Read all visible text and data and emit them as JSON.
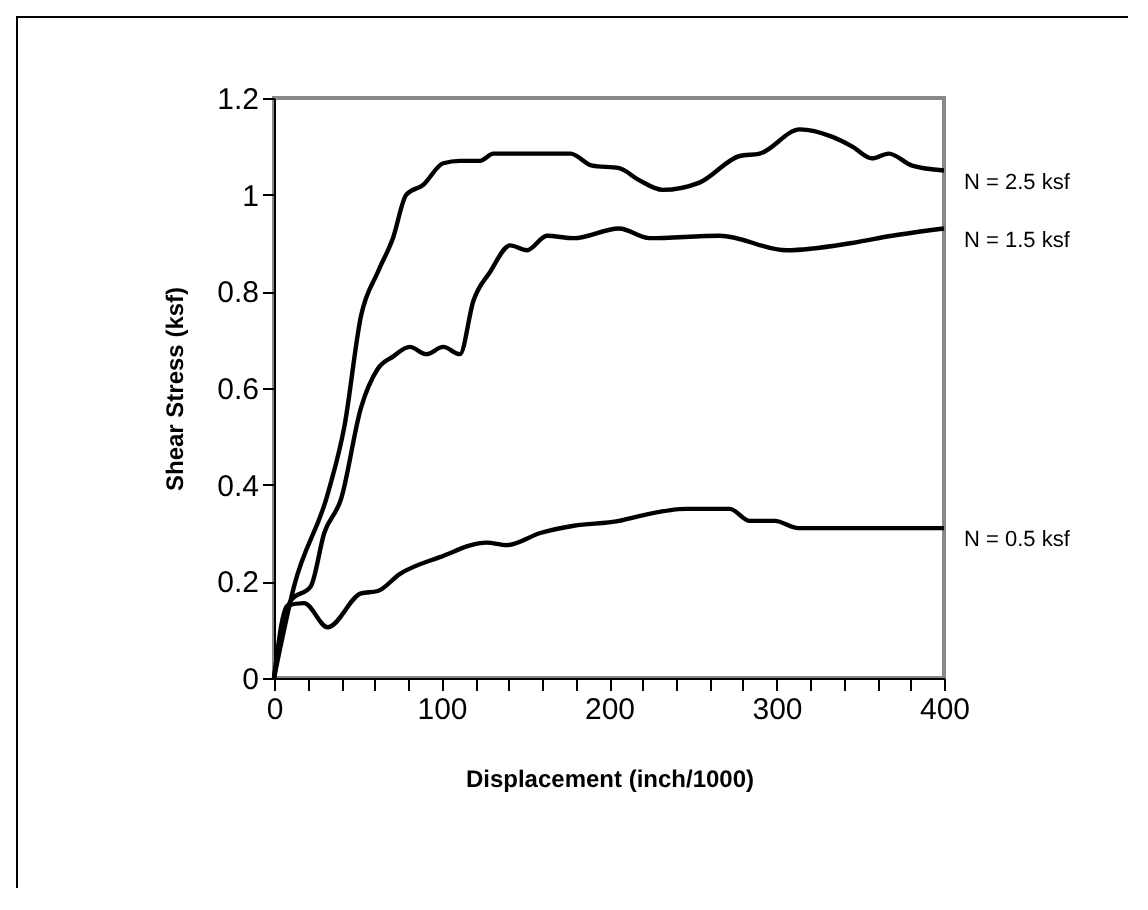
{
  "chart_data": {
    "type": "line",
    "xlabel": "Displacement (inch/1000)",
    "ylabel": "Shear Stress (ksf)",
    "xlim": [
      0,
      400
    ],
    "ylim": [
      0,
      1.2
    ],
    "xticks": [
      0,
      {
        "value": 20,
        "label": null
      },
      {
        "value": 40,
        "label": null
      },
      {
        "value": 60,
        "label": null
      },
      {
        "value": 80,
        "label": null
      },
      100,
      {
        "value": 120,
        "label": null
      },
      {
        "value": 140,
        "label": null
      },
      {
        "value": 160,
        "label": null
      },
      {
        "value": 180,
        "label": null
      },
      200,
      {
        "value": 220,
        "label": null
      },
      {
        "value": 240,
        "label": null
      },
      {
        "value": 260,
        "label": null
      },
      {
        "value": 280,
        "label": null
      },
      300,
      {
        "value": 320,
        "label": null
      },
      {
        "value": 340,
        "label": null
      },
      {
        "value": 360,
        "label": null
      },
      {
        "value": 380,
        "label": null
      },
      400
    ],
    "yticks": [
      0,
      0.2,
      0.4,
      0.6,
      0.8,
      1,
      1.2
    ],
    "grid": false,
    "legend": false,
    "marker": "none",
    "line_style": "solid",
    "series": [
      {
        "name": "N = 2.5 ksf",
        "color": "#000000",
        "x": [
          0,
          12,
          32,
          42,
          52,
          62,
          71,
          79,
          89,
          101,
          111,
          123,
          131,
          177,
          190,
          206,
          218,
          232,
          254,
          278,
          290,
          314,
          333,
          345,
          357,
          367,
          381,
          400
        ],
        "values": [
          0,
          0.19,
          0.38,
          0.52,
          0.75,
          0.84,
          0.91,
          1.0,
          1.02,
          1.065,
          1.07,
          1.07,
          1.085,
          1.085,
          1.06,
          1.055,
          1.03,
          1.01,
          1.025,
          1.08,
          1.085,
          1.135,
          1.12,
          1.1,
          1.075,
          1.085,
          1.06,
          1.05
        ]
      },
      {
        "name": "N = 1.5 ksf",
        "color": "#000000",
        "x": [
          0,
          10,
          22,
          30,
          40,
          52,
          62,
          71,
          81,
          91,
          101,
          111,
          119,
          129,
          141,
          151,
          163,
          179,
          206,
          224,
          266,
          306,
          345,
          369,
          400
        ],
        "values": [
          0,
          0.16,
          0.19,
          0.3,
          0.37,
          0.56,
          0.64,
          0.665,
          0.685,
          0.67,
          0.685,
          0.67,
          0.78,
          0.84,
          0.895,
          0.885,
          0.915,
          0.91,
          0.93,
          0.91,
          0.915,
          0.885,
          0.9,
          0.915,
          0.93
        ]
      },
      {
        "name": "N = 0.5 ksf",
        "color": "#000000",
        "x": [
          0,
          8,
          18,
          32,
          52,
          62,
          75,
          99,
          127,
          139,
          159,
          179,
          206,
          218,
          246,
          272,
          284,
          299,
          313,
          400
        ],
        "values": [
          0,
          0.15,
          0.155,
          0.105,
          0.175,
          0.18,
          0.215,
          0.25,
          0.28,
          0.275,
          0.3,
          0.315,
          0.325,
          0.335,
          0.35,
          0.35,
          0.325,
          0.325,
          0.31,
          0.31
        ]
      }
    ]
  }
}
